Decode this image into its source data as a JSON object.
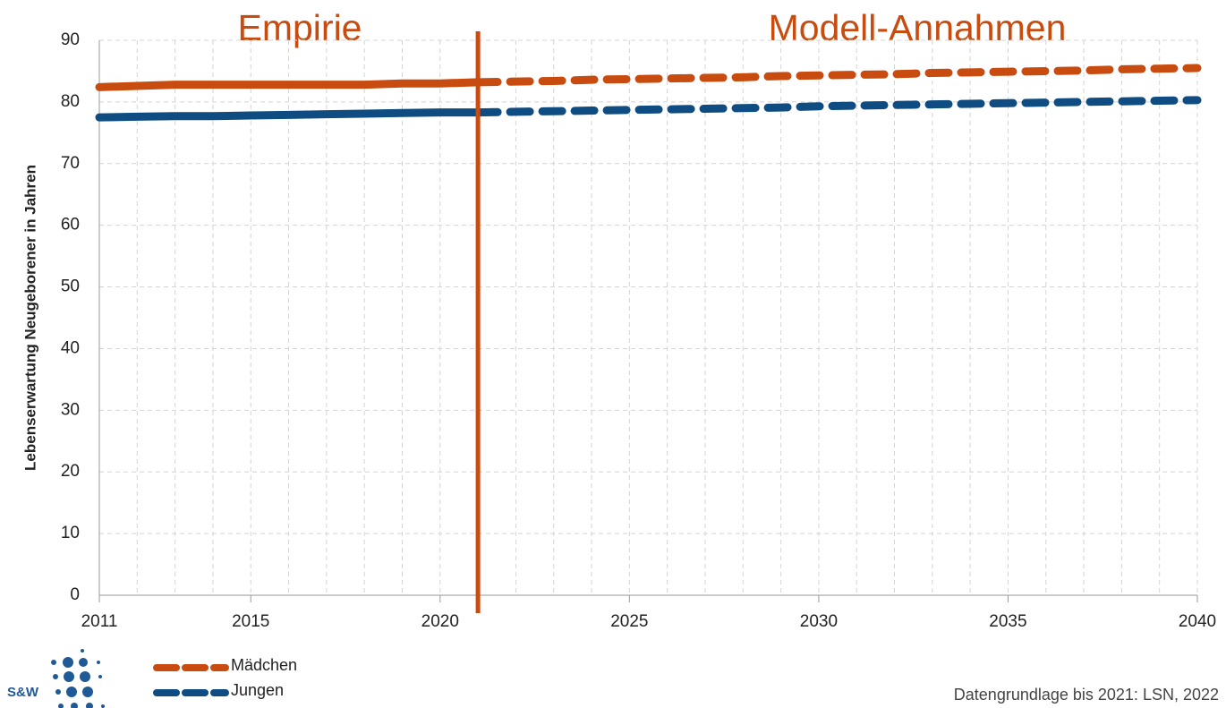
{
  "chart_data": {
    "type": "line",
    "annotations": [
      "Empirie",
      "Modell-Annahmen"
    ],
    "ylabel": "Lebenserwartung Neugeborener in Jahren",
    "source": "Datengrundlage bis 2021: LSN, 2022",
    "logo": "S&W",
    "x": [
      2011,
      2012,
      2013,
      2014,
      2015,
      2016,
      2017,
      2018,
      2019,
      2020,
      2021,
      2022,
      2023,
      2024,
      2025,
      2026,
      2027,
      2028,
      2029,
      2030,
      2031,
      2032,
      2033,
      2034,
      2035,
      2036,
      2037,
      2038,
      2039,
      2040
    ],
    "divider_x": 2021,
    "divider_color": "#c84b0f",
    "series": [
      {
        "name": "Mädchen",
        "color": "#c84b0f",
        "values": [
          82.4,
          82.6,
          82.8,
          82.8,
          82.8,
          82.8,
          82.8,
          82.8,
          83.0,
          83.0,
          83.2,
          83.3,
          83.4,
          83.6,
          83.7,
          83.8,
          83.9,
          84.0,
          84.2,
          84.3,
          84.4,
          84.5,
          84.7,
          84.8,
          84.9,
          85.0,
          85.1,
          85.3,
          85.4,
          85.5
        ]
      },
      {
        "name": "Jungen",
        "color": "#0f4c81",
        "values": [
          77.5,
          77.6,
          77.7,
          77.7,
          77.8,
          77.9,
          78.0,
          78.1,
          78.2,
          78.3,
          78.3,
          78.4,
          78.5,
          78.6,
          78.7,
          78.8,
          78.9,
          79.0,
          79.1,
          79.3,
          79.4,
          79.5,
          79.6,
          79.7,
          79.8,
          79.9,
          80.0,
          80.1,
          80.2,
          80.3
        ]
      }
    ],
    "xlim": [
      2011,
      2040
    ],
    "xticks": [
      2011,
      2015,
      2020,
      2025,
      2030,
      2035,
      2040
    ],
    "ylim": [
      0,
      90
    ],
    "yticks": [
      0,
      10,
      20,
      30,
      40,
      50,
      60,
      70,
      80,
      90
    ],
    "grid": true
  }
}
